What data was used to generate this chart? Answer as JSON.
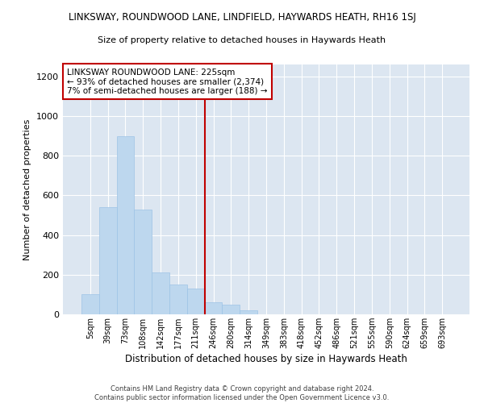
{
  "title_line1": "LINKSWAY, ROUNDWOOD LANE, LINDFIELD, HAYWARDS HEATH, RH16 1SJ",
  "title_line2": "Size of property relative to detached houses in Haywards Heath",
  "xlabel": "Distribution of detached houses by size in Haywards Heath",
  "ylabel": "Number of detached properties",
  "footnote": "Contains HM Land Registry data © Crown copyright and database right 2024.\nContains public sector information licensed under the Open Government Licence v3.0.",
  "annotation_title": "LINKSWAY ROUNDWOOD LANE: 225sqm",
  "annotation_line2": "← 93% of detached houses are smaller (2,374)",
  "annotation_line3": "7% of semi-detached houses are larger (188) →",
  "bar_color": "#bdd7ee",
  "bar_edge_color": "#9dc3e6",
  "vline_color": "#c00000",
  "background_color": "#dce6f1",
  "categories": [
    "5sqm",
    "39sqm",
    "73sqm",
    "108sqm",
    "142sqm",
    "177sqm",
    "211sqm",
    "246sqm",
    "280sqm",
    "314sqm",
    "349sqm",
    "383sqm",
    "418sqm",
    "452sqm",
    "486sqm",
    "521sqm",
    "555sqm",
    "590sqm",
    "624sqm",
    "659sqm",
    "693sqm"
  ],
  "values": [
    100,
    540,
    900,
    530,
    210,
    150,
    130,
    60,
    50,
    20,
    0,
    0,
    0,
    0,
    0,
    0,
    0,
    0,
    0,
    0,
    0
  ],
  "ylim": [
    0,
    1260
  ],
  "yticks": [
    0,
    200,
    400,
    600,
    800,
    1000,
    1200
  ],
  "vline_position": 6.5
}
